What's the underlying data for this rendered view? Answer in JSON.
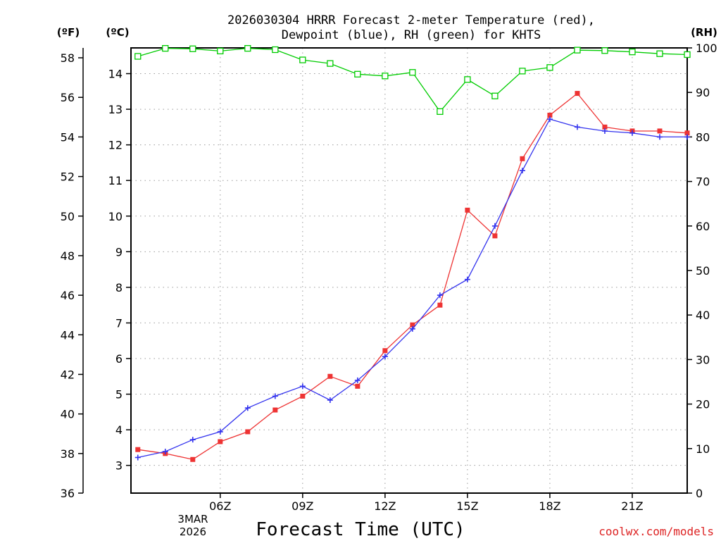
{
  "chart_data": {
    "type": "line",
    "title_line1": "2026030304 HRRR Forecast 2-meter Temperature (red),",
    "title_line2": "Dewpoint (blue), RH (green) for KHTS",
    "xlabel": "Forecast Time (UTC)",
    "unit_f": "(ºF)",
    "unit_c": "(ºC)",
    "unit_rh": "(RH)",
    "credit": "coolwx.com/models",
    "date_line1": "3MAR",
    "date_line2": "2026",
    "x_range": [
      2.75,
      23
    ],
    "x_ticks": [
      {
        "x": 6,
        "label": "06Z"
      },
      {
        "x": 9,
        "label": "09Z"
      },
      {
        "x": 12,
        "label": "12Z"
      },
      {
        "x": 15,
        "label": "15Z"
      },
      {
        "x": 18,
        "label": "18Z"
      },
      {
        "x": 21,
        "label": "21Z"
      }
    ],
    "y_left_f": {
      "range": [
        36,
        58.5
      ],
      "ticks": [
        36,
        38,
        40,
        42,
        44,
        46,
        48,
        50,
        52,
        54,
        56,
        58
      ]
    },
    "y_c": {
      "ticks": [
        3,
        4,
        5,
        6,
        7,
        8,
        9,
        10,
        11,
        12,
        13,
        14
      ]
    },
    "y_right_rh": {
      "range": [
        0,
        100
      ],
      "ticks": [
        0,
        10,
        20,
        30,
        40,
        50,
        60,
        70,
        80,
        90,
        100
      ]
    },
    "x": [
      3,
      4,
      5,
      6,
      7,
      8,
      9,
      10,
      11,
      12,
      13,
      14,
      15,
      16,
      17,
      18,
      19,
      20,
      21,
      22,
      23
    ],
    "series": [
      {
        "name": "Temperature",
        "color": "#ee3333",
        "marker": "square-filled",
        "axis": "F",
        "values": [
          38.2,
          38.0,
          37.7,
          38.6,
          39.1,
          40.2,
          40.9,
          41.9,
          41.4,
          43.2,
          44.5,
          45.5,
          50.3,
          49.0,
          52.9,
          55.1,
          56.2,
          54.5,
          54.3,
          54.3,
          54.2
        ]
      },
      {
        "name": "Dewpoint",
        "color": "#3333ee",
        "marker": "plus",
        "axis": "F",
        "values": [
          37.8,
          38.1,
          38.7,
          39.1,
          40.3,
          40.9,
          41.4,
          40.7,
          41.7,
          42.9,
          44.3,
          46.0,
          46.8,
          49.5,
          52.3,
          54.9,
          54.5,
          54.3,
          54.2,
          54.0,
          54.0
        ]
      },
      {
        "name": "RH",
        "color": "#00cc00",
        "marker": "square-open",
        "axis": "RH",
        "values": [
          98.1,
          99.9,
          99.8,
          99.3,
          99.9,
          99.6,
          97.3,
          96.5,
          94.1,
          93.7,
          94.5,
          85.7,
          92.9,
          89.2,
          94.8,
          95.6,
          99.5,
          99.4,
          99.1,
          98.7,
          98.5
        ]
      }
    ]
  }
}
